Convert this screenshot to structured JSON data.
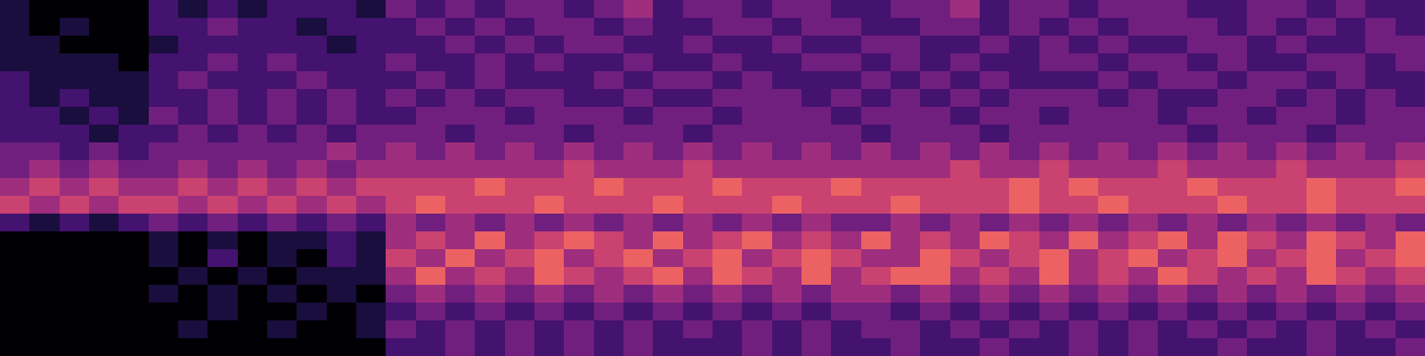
{
  "chart_data": {
    "type": "heatmap",
    "color": "magma",
    "tick_labels": false,
    "zlim": [
      0,
      9
    ],
    "cells": [
      [
        1,
        0,
        0,
        0,
        0,
        2,
        1,
        2,
        1,
        2,
        2,
        2,
        1,
        3,
        2,
        3,
        2,
        3,
        3,
        2,
        3,
        4,
        2,
        3,
        3,
        2,
        3,
        3,
        2,
        2,
        3,
        3,
        4,
        2,
        3,
        3,
        2,
        3,
        3,
        3,
        2,
        2,
        3,
        3,
        2,
        3,
        2,
        2
      ],
      [
        1,
        0,
        1,
        0,
        0,
        2,
        2,
        3,
        2,
        2,
        1,
        2,
        2,
        2,
        3,
        2,
        3,
        2,
        3,
        3,
        2,
        3,
        2,
        2,
        3,
        3,
        2,
        3,
        3,
        2,
        2,
        3,
        3,
        2,
        3,
        2,
        3,
        2,
        3,
        3,
        3,
        2,
        3,
        2,
        3,
        2,
        3,
        2
      ],
      [
        1,
        1,
        0,
        0,
        0,
        1,
        2,
        2,
        2,
        2,
        2,
        1,
        2,
        2,
        2,
        3,
        2,
        3,
        2,
        3,
        3,
        2,
        2,
        3,
        2,
        2,
        3,
        2,
        2,
        3,
        3,
        2,
        2,
        3,
        2,
        3,
        2,
        3,
        2,
        2,
        3,
        3,
        2,
        3,
        2,
        2,
        3,
        3
      ],
      [
        1,
        1,
        1,
        1,
        0,
        2,
        2,
        3,
        2,
        3,
        2,
        2,
        2,
        3,
        2,
        2,
        3,
        2,
        3,
        2,
        2,
        3,
        2,
        2,
        3,
        2,
        2,
        3,
        3,
        2,
        3,
        2,
        3,
        2,
        2,
        3,
        3,
        2,
        3,
        3,
        2,
        3,
        2,
        2,
        3,
        3,
        2,
        3
      ],
      [
        2,
        1,
        1,
        1,
        1,
        2,
        3,
        2,
        2,
        2,
        3,
        2,
        2,
        2,
        3,
        2,
        3,
        2,
        2,
        2,
        3,
        2,
        3,
        3,
        2,
        3,
        2,
        2,
        2,
        3,
        2,
        3,
        2,
        3,
        2,
        2,
        2,
        3,
        2,
        3,
        3,
        2,
        3,
        3,
        2,
        3,
        2,
        2
      ],
      [
        2,
        1,
        2,
        1,
        1,
        2,
        2,
        3,
        2,
        3,
        2,
        3,
        2,
        3,
        2,
        3,
        2,
        3,
        3,
        2,
        2,
        3,
        2,
        2,
        3,
        3,
        3,
        2,
        3,
        2,
        3,
        2,
        3,
        2,
        3,
        3,
        3,
        2,
        3,
        2,
        2,
        3,
        3,
        2,
        3,
        2,
        3,
        2
      ],
      [
        2,
        2,
        1,
        2,
        1,
        3,
        2,
        3,
        2,
        3,
        2,
        3,
        2,
        2,
        3,
        3,
        3,
        2,
        3,
        3,
        3,
        2,
        3,
        3,
        2,
        3,
        3,
        3,
        2,
        3,
        3,
        3,
        2,
        3,
        3,
        2,
        3,
        3,
        3,
        2,
        3,
        3,
        2,
        3,
        3,
        2,
        3,
        3
      ],
      [
        2,
        2,
        2,
        1,
        2,
        2,
        3,
        2,
        3,
        2,
        3,
        2,
        3,
        3,
        3,
        2,
        3,
        3,
        3,
        2,
        3,
        3,
        3,
        2,
        3,
        3,
        3,
        3,
        3,
        2,
        3,
        3,
        3,
        2,
        3,
        3,
        3,
        3,
        3,
        3,
        2,
        3,
        3,
        3,
        2,
        3,
        3,
        3
      ],
      [
        3,
        3,
        2,
        3,
        2,
        3,
        3,
        3,
        3,
        3,
        3,
        4,
        3,
        4,
        3,
        4,
        3,
        4,
        3,
        4,
        3,
        4,
        3,
        4,
        3,
        4,
        3,
        4,
        3,
        4,
        3,
        4,
        3,
        4,
        3,
        4,
        3,
        4,
        3,
        4,
        3,
        4,
        3,
        4,
        3,
        4,
        3,
        4
      ],
      [
        3,
        4,
        3,
        4,
        3,
        3,
        4,
        3,
        4,
        3,
        4,
        3,
        4,
        4,
        4,
        4,
        4,
        4,
        4,
        5,
        4,
        4,
        4,
        5,
        4,
        4,
        4,
        4,
        4,
        4,
        4,
        4,
        5,
        4,
        4,
        5,
        4,
        4,
        4,
        5,
        4,
        4,
        4,
        5,
        4,
        4,
        4,
        5
      ],
      [
        4,
        5,
        4,
        5,
        4,
        4,
        5,
        4,
        5,
        4,
        5,
        4,
        5,
        5,
        5,
        5,
        6,
        5,
        5,
        5,
        6,
        5,
        5,
        5,
        6,
        5,
        5,
        5,
        6,
        5,
        5,
        5,
        5,
        5,
        6,
        5,
        6,
        5,
        5,
        5,
        6,
        5,
        5,
        5,
        6,
        5,
        5,
        6
      ],
      [
        5,
        4,
        5,
        4,
        5,
        5,
        4,
        5,
        4,
        5,
        4,
        5,
        4,
        5,
        6,
        5,
        5,
        5,
        6,
        5,
        5,
        5,
        6,
        5,
        5,
        5,
        6,
        5,
        5,
        5,
        6,
        5,
        5,
        5,
        6,
        5,
        5,
        6,
        5,
        5,
        5,
        6,
        5,
        5,
        6,
        5,
        5,
        5
      ],
      [
        2,
        1,
        2,
        1,
        2,
        3,
        2,
        3,
        2,
        3,
        2,
        3,
        2,
        4,
        3,
        4,
        3,
        4,
        3,
        4,
        3,
        4,
        3,
        4,
        3,
        4,
        3,
        4,
        3,
        3,
        4,
        3,
        4,
        3,
        4,
        3,
        4,
        3,
        4,
        3,
        4,
        3,
        4,
        3,
        4,
        3,
        4,
        3
      ],
      [
        0,
        0,
        0,
        0,
        0,
        1,
        0,
        1,
        0,
        1,
        1,
        2,
        1,
        4,
        5,
        4,
        6,
        4,
        5,
        6,
        5,
        4,
        6,
        4,
        5,
        6,
        4,
        5,
        4,
        6,
        4,
        5,
        4,
        6,
        5,
        4,
        6,
        4,
        5,
        6,
        4,
        6,
        5,
        4,
        6,
        5,
        4,
        6
      ],
      [
        0,
        0,
        0,
        0,
        0,
        1,
        0,
        2,
        0,
        1,
        0,
        2,
        1,
        5,
        4,
        6,
        4,
        5,
        6,
        4,
        5,
        6,
        4,
        5,
        6,
        4,
        5,
        6,
        5,
        4,
        4,
        6,
        5,
        4,
        5,
        6,
        4,
        5,
        6,
        4,
        5,
        6,
        4,
        5,
        6,
        4,
        5,
        6
      ],
      [
        0,
        0,
        0,
        0,
        0,
        0,
        1,
        0,
        1,
        0,
        1,
        1,
        1,
        4,
        6,
        4,
        5,
        4,
        6,
        5,
        4,
        5,
        6,
        4,
        6,
        5,
        4,
        6,
        4,
        5,
        6,
        6,
        4,
        5,
        4,
        6,
        4,
        5,
        4,
        6,
        5,
        4,
        5,
        4,
        6,
        5,
        4,
        5
      ],
      [
        0,
        0,
        0,
        0,
        0,
        1,
        0,
        1,
        0,
        1,
        0,
        1,
        0,
        3,
        4,
        3,
        4,
        3,
        4,
        3,
        4,
        3,
        4,
        3,
        4,
        3,
        4,
        3,
        4,
        4,
        3,
        4,
        3,
        4,
        3,
        4,
        3,
        4,
        3,
        4,
        3,
        4,
        3,
        4,
        3,
        4,
        3,
        4
      ],
      [
        0,
        0,
        0,
        0,
        0,
        0,
        0,
        1,
        0,
        0,
        1,
        0,
        1,
        2,
        3,
        2,
        3,
        2,
        3,
        2,
        3,
        2,
        3,
        2,
        3,
        2,
        3,
        2,
        3,
        3,
        2,
        3,
        2,
        3,
        2,
        3,
        2,
        3,
        2,
        3,
        2,
        3,
        2,
        3,
        2,
        3,
        2,
        3
      ],
      [
        0,
        0,
        0,
        0,
        0,
        0,
        1,
        0,
        0,
        1,
        0,
        0,
        1,
        3,
        2,
        3,
        2,
        3,
        2,
        3,
        2,
        3,
        2,
        3,
        2,
        3,
        2,
        3,
        2,
        3,
        3,
        2,
        3,
        2,
        3,
        2,
        3,
        2,
        3,
        2,
        3,
        2,
        3,
        2,
        3,
        2,
        3,
        2
      ],
      [
        0,
        0,
        0,
        0,
        0,
        0,
        0,
        0,
        0,
        0,
        0,
        0,
        0,
        2,
        2,
        3,
        2,
        3,
        2,
        3,
        2,
        3,
        2,
        2,
        2,
        3,
        2,
        3,
        2,
        2,
        3,
        2,
        2,
        3,
        2,
        2,
        3,
        2,
        3,
        2,
        2,
        3,
        2,
        2,
        3,
        2,
        2,
        3
      ]
    ]
  }
}
